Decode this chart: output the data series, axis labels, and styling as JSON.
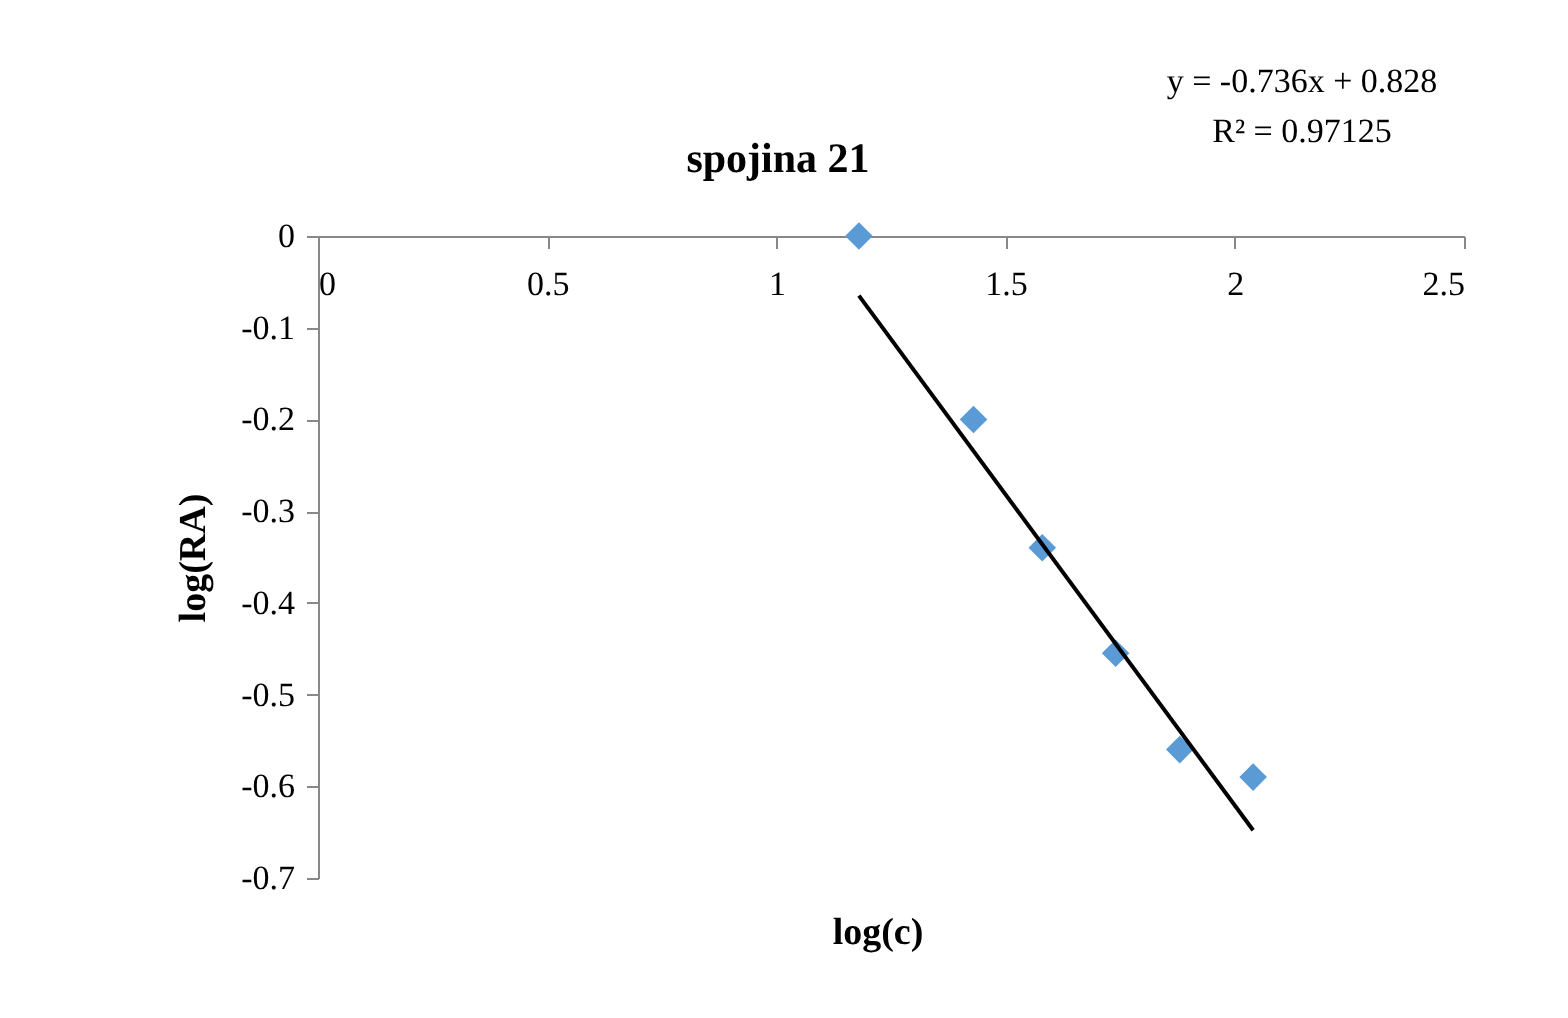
{
  "chart_data": {
    "type": "scatter",
    "title": "spojina 21",
    "xlabel": "log(c)",
    "ylabel": "log(RA)",
    "annotations": [
      "y = -0.736x + 0.828",
      "R² = 0.97125"
    ],
    "xlim": [
      0,
      2.5
    ],
    "xticks": [
      0,
      0.5,
      1,
      1.5,
      2,
      2.5
    ],
    "ylim": [
      -0.7,
      0
    ],
    "yticks": [
      0,
      -0.1,
      -0.2,
      -0.3,
      -0.4,
      -0.5,
      -0.6,
      -0.7
    ],
    "grid": false,
    "series": [
      {
        "marker": "diamond",
        "color": "#5b9bd5",
        "x": [
          1.18,
          1.43,
          1.58,
          1.74,
          1.88,
          2.04
        ],
        "values": [
          0,
          -0.2,
          -0.34,
          -0.455,
          -0.56,
          -0.59
        ]
      },
      {
        "type": "line",
        "color": "#000000",
        "x": [
          1.18,
          2.04
        ],
        "values": [
          -0.065,
          -0.648
        ]
      }
    ]
  }
}
